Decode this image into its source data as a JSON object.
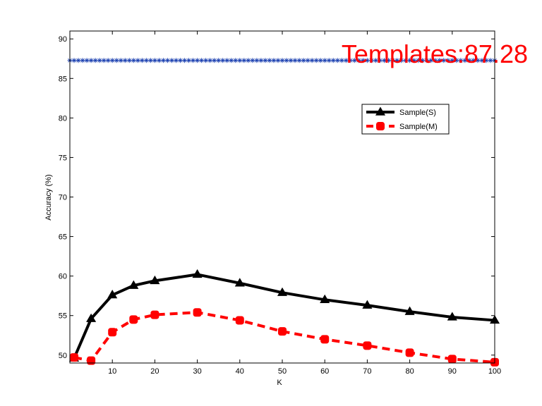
{
  "chart_data": {
    "type": "line",
    "xlabel": "K",
    "ylabel": "Accuracy (%)",
    "xlim": [
      0,
      100
    ],
    "ylim": [
      49,
      91
    ],
    "xticks": [
      10,
      20,
      30,
      40,
      50,
      60,
      70,
      80,
      90,
      100
    ],
    "yticks": [
      50,
      55,
      60,
      65,
      70,
      75,
      80,
      85,
      90
    ],
    "x": [
      1,
      5,
      10,
      15,
      20,
      30,
      40,
      50,
      60,
      70,
      80,
      90,
      100
    ],
    "series": [
      {
        "name": "Sample(S)",
        "color": "#000000",
        "line_style": "solid",
        "marker": "triangle",
        "values": [
          49.6,
          54.6,
          57.6,
          58.8,
          59.4,
          60.2,
          59.1,
          57.9,
          57.0,
          56.3,
          55.5,
          54.8,
          54.4
        ]
      },
      {
        "name": "Sample(M)",
        "color": "#ff0000",
        "line_style": "dashed",
        "marker": "square",
        "values": [
          49.7,
          49.3,
          52.9,
          54.5,
          55.1,
          55.4,
          54.4,
          53.0,
          52.0,
          51.2,
          50.3,
          49.5,
          49.1
        ]
      }
    ],
    "reference_line": {
      "value": 87.28,
      "color": "#1a3fb0",
      "marker": "asterisk"
    },
    "annotation": {
      "text": "Templates:87.28",
      "color": "#ff0000"
    },
    "legend_position": "top-right",
    "grid": false
  }
}
